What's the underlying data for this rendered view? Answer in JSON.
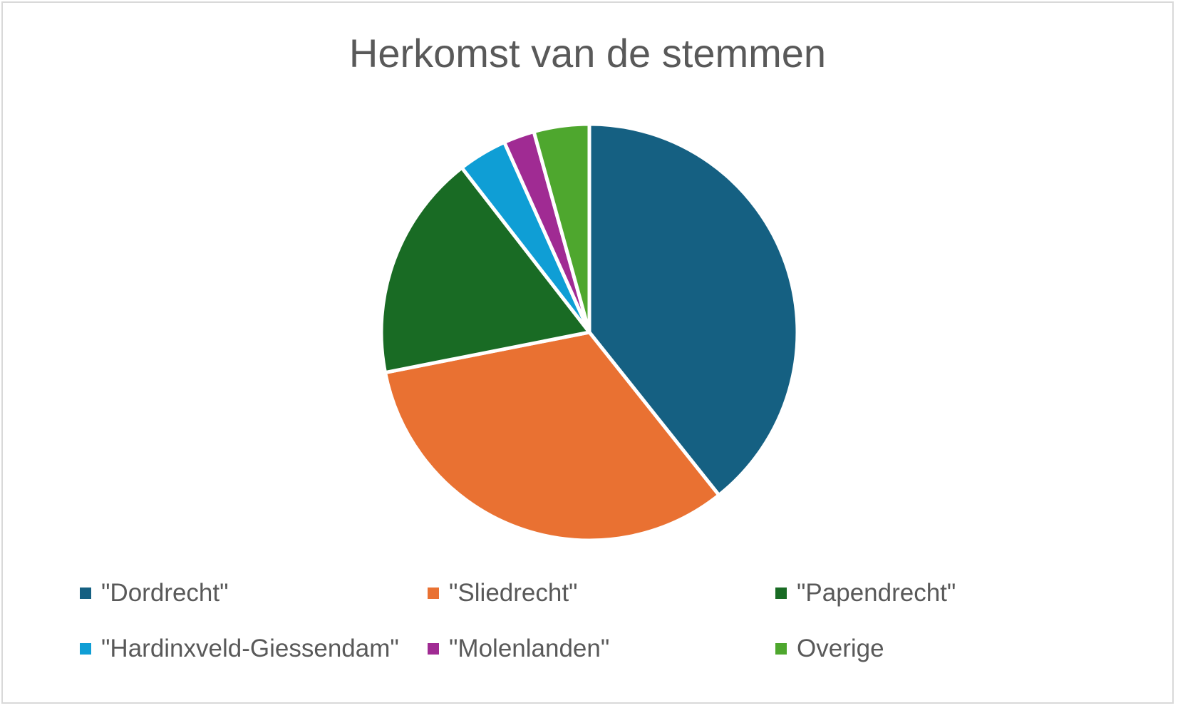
{
  "chart_data": {
    "type": "pie",
    "title": "Herkomst van de stemmen",
    "categories": [
      "\"Dordrecht\"",
      "\"Sliedrecht\"",
      "\"Papendrecht\"",
      "\"Hardinxveld-Giessendam\"",
      "\"Molenlanden\"",
      "Overige"
    ],
    "values": [
      39.3,
      32.6,
      17.6,
      3.8,
      2.4,
      4.3
    ],
    "colors": [
      "#156082",
      "#e97132",
      "#196b24",
      "#0f9ed5",
      "#a02b93",
      "#4ea72e"
    ],
    "legend_position": "bottom",
    "start_angle": "12 o'clock",
    "direction": "clockwise"
  }
}
